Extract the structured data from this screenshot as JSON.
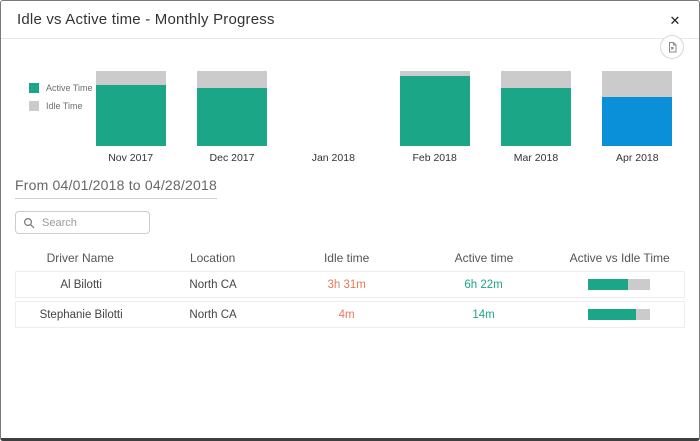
{
  "modal": {
    "title": "Idle vs Active time - Monthly Progress",
    "close_glyph": "✕"
  },
  "legend": [
    {
      "label": "Active Time",
      "color": "#1aa687"
    },
    {
      "label": "Idle Time",
      "color": "#cbcbcb"
    }
  ],
  "chart_data": {
    "type": "bar",
    "subtype": "100-percent-stacked",
    "categories": [
      "Nov 2017",
      "Dec 2017",
      "Jan 2018",
      "Feb 2018",
      "Mar 2018",
      "Apr 2018"
    ],
    "series": [
      {
        "name": "Active Time",
        "values": [
          81,
          78,
          null,
          93,
          77,
          65
        ]
      },
      {
        "name": "Idle Time",
        "values": [
          19,
          22,
          null,
          7,
          23,
          35
        ]
      }
    ],
    "unit": "percent of month total",
    "highlighted_category": "Apr 2018",
    "legend_position": "left",
    "grid": false,
    "colors": {
      "active": "#1aa687",
      "idle": "#cbcbcb",
      "active_highlight": "#0a90d8"
    }
  },
  "period": {
    "text": "From 04/01/2018 to 04/28/2018"
  },
  "search": {
    "placeholder": "Search"
  },
  "table": {
    "columns": [
      "Driver Name",
      "Location",
      "Idle time",
      "Active time",
      "Active vs Idle Time"
    ],
    "rows": [
      {
        "driver": "Al Bilotti",
        "location": "North CA",
        "idle_time": "3h 31m",
        "active_time": "6h 22m",
        "active_pct": 65
      },
      {
        "driver": "Stephanie Bilotti",
        "location": "North CA",
        "idle_time": "4m",
        "active_time": "14m",
        "active_pct": 78
      }
    ]
  },
  "colors": {
    "idle_time_text": "#e8795a",
    "active_time_text": "#1aa687",
    "modal_border": "#7a7a7a"
  }
}
